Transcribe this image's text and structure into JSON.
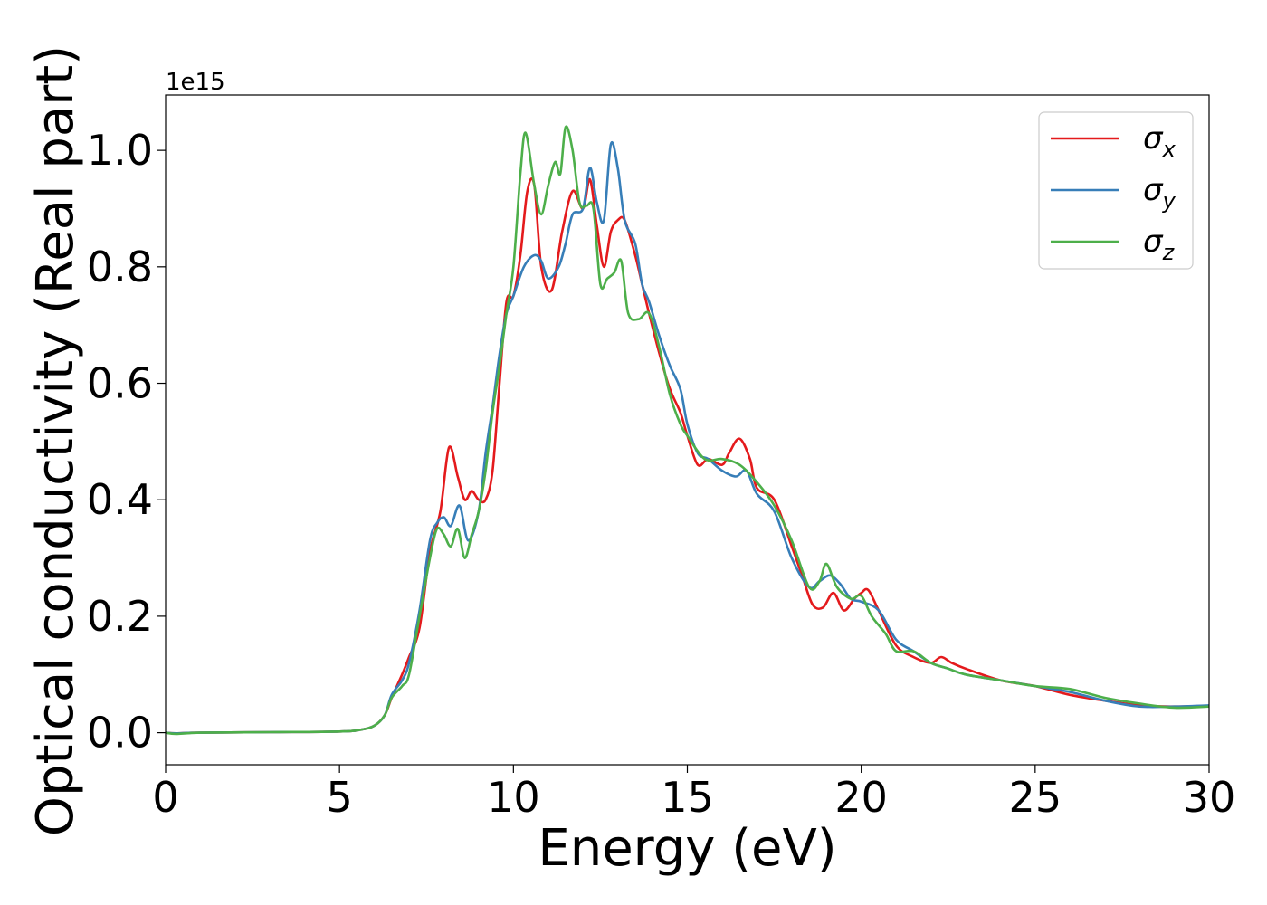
{
  "chart_data": {
    "type": "line",
    "xlabel": "Energy (eV)",
    "ylabel": "Optical conductivity (Real part)",
    "y_offset_label": "1e15",
    "xlim": [
      0,
      30
    ],
    "ylim": [
      -0.055,
      1.095
    ],
    "x_ticks": [
      0,
      5,
      10,
      15,
      20,
      25,
      30
    ],
    "x_tick_labels": [
      "0",
      "5",
      "10",
      "15",
      "20",
      "25",
      "30"
    ],
    "y_ticks": [
      0.0,
      0.2,
      0.4,
      0.6,
      0.8,
      1.0
    ],
    "y_tick_labels": [
      "0.0",
      "0.2",
      "0.4",
      "0.6",
      "0.8",
      "1.0"
    ],
    "grid": false,
    "legend_position": "top-right",
    "series": [
      {
        "name": "σx",
        "symbol": "σ",
        "subscript": "x",
        "color": "#e41a1c",
        "x": [
          0,
          0.3,
          1,
          3,
          5,
          5.6,
          6.0,
          6.3,
          6.5,
          6.8,
          7.0,
          7.3,
          7.6,
          7.9,
          8.15,
          8.4,
          8.6,
          8.8,
          9.0,
          9.2,
          9.4,
          9.6,
          9.8,
          10.0,
          10.2,
          10.4,
          10.6,
          10.8,
          11.1,
          11.4,
          11.7,
          12.0,
          12.2,
          12.4,
          12.6,
          12.8,
          13.0,
          13.2,
          13.5,
          13.7,
          13.9,
          14.2,
          14.5,
          14.8,
          15.0,
          15.3,
          15.6,
          16.0,
          16.2,
          16.5,
          16.8,
          17.0,
          17.5,
          18.0,
          18.3,
          18.6,
          18.9,
          19.2,
          19.5,
          19.8,
          20.0,
          20.2,
          20.5,
          21.0,
          21.5,
          22.0,
          22.3,
          22.6,
          23.0,
          24.0,
          25.0,
          26.0,
          27.0,
          28.0,
          29.0,
          30.0
        ],
        "values": [
          0,
          -0.001,
          0,
          0.001,
          0.002,
          0.005,
          0.012,
          0.03,
          0.06,
          0.1,
          0.13,
          0.18,
          0.31,
          0.38,
          0.49,
          0.44,
          0.4,
          0.415,
          0.4,
          0.4,
          0.45,
          0.6,
          0.74,
          0.75,
          0.82,
          0.93,
          0.94,
          0.8,
          0.76,
          0.86,
          0.93,
          0.9,
          0.95,
          0.87,
          0.8,
          0.86,
          0.88,
          0.88,
          0.82,
          0.77,
          0.72,
          0.65,
          0.59,
          0.55,
          0.51,
          0.46,
          0.47,
          0.46,
          0.48,
          0.505,
          0.47,
          0.42,
          0.4,
          0.32,
          0.27,
          0.22,
          0.215,
          0.24,
          0.21,
          0.23,
          0.24,
          0.245,
          0.21,
          0.15,
          0.13,
          0.12,
          0.13,
          0.12,
          0.11,
          0.09,
          0.08,
          0.065,
          0.055,
          0.047,
          0.045,
          0.046
        ]
      },
      {
        "name": "σy",
        "symbol": "σ",
        "subscript": "y",
        "color": "#377eb8",
        "x": [
          0,
          0.3,
          1,
          3,
          5,
          5.6,
          6.0,
          6.3,
          6.5,
          6.8,
          7.0,
          7.3,
          7.6,
          7.8,
          8.0,
          8.2,
          8.45,
          8.7,
          9.0,
          9.2,
          9.4,
          9.6,
          9.8,
          10.0,
          10.3,
          10.6,
          10.8,
          11.0,
          11.3,
          11.5,
          11.7,
          12.0,
          12.2,
          12.4,
          12.6,
          12.8,
          13.0,
          13.2,
          13.5,
          13.7,
          13.9,
          14.2,
          14.5,
          14.8,
          15.0,
          15.3,
          15.6,
          16.0,
          16.4,
          16.7,
          17.0,
          17.5,
          18.0,
          18.5,
          18.8,
          19.1,
          19.4,
          19.7,
          20.0,
          20.5,
          21.0,
          21.5,
          22.0,
          22.5,
          23.0,
          24.0,
          25.0,
          26.0,
          27.0,
          28.0,
          29.0,
          30.0
        ],
        "values": [
          0,
          -0.001,
          0,
          0.001,
          0.002,
          0.005,
          0.012,
          0.03,
          0.065,
          0.09,
          0.12,
          0.21,
          0.33,
          0.36,
          0.37,
          0.355,
          0.39,
          0.33,
          0.38,
          0.48,
          0.56,
          0.65,
          0.72,
          0.75,
          0.8,
          0.82,
          0.81,
          0.78,
          0.8,
          0.84,
          0.89,
          0.9,
          0.97,
          0.91,
          0.88,
          1.01,
          0.97,
          0.88,
          0.84,
          0.77,
          0.74,
          0.68,
          0.63,
          0.59,
          0.53,
          0.48,
          0.47,
          0.45,
          0.44,
          0.45,
          0.41,
          0.38,
          0.3,
          0.25,
          0.26,
          0.27,
          0.255,
          0.23,
          0.225,
          0.21,
          0.16,
          0.14,
          0.12,
          0.11,
          0.1,
          0.09,
          0.08,
          0.07,
          0.055,
          0.045,
          0.045,
          0.047
        ]
      },
      {
        "name": "σz",
        "symbol": "σ",
        "subscript": "z",
        "color": "#4daf4a",
        "x": [
          0,
          0.3,
          1,
          3,
          5,
          5.6,
          6.0,
          6.3,
          6.5,
          6.8,
          7.0,
          7.3,
          7.6,
          7.8,
          8.0,
          8.2,
          8.4,
          8.6,
          8.8,
          9.0,
          9.2,
          9.4,
          9.6,
          9.8,
          10.0,
          10.2,
          10.35,
          10.6,
          10.8,
          11.0,
          11.2,
          11.35,
          11.5,
          11.7,
          11.9,
          12.1,
          12.3,
          12.5,
          12.7,
          12.9,
          13.1,
          13.3,
          13.6,
          13.9,
          14.2,
          14.5,
          14.8,
          15.0,
          15.5,
          16.0,
          16.5,
          17.0,
          17.5,
          18.0,
          18.5,
          18.8,
          19.0,
          19.3,
          19.7,
          20.0,
          20.3,
          20.7,
          21.0,
          21.5,
          22.0,
          22.5,
          23.0,
          24.0,
          25.0,
          26.0,
          27.0,
          28.0,
          29.0,
          30.0
        ],
        "values": [
          0,
          -0.002,
          0,
          0.001,
          0.002,
          0.005,
          0.012,
          0.03,
          0.06,
          0.08,
          0.1,
          0.2,
          0.3,
          0.35,
          0.34,
          0.32,
          0.35,
          0.3,
          0.34,
          0.38,
          0.45,
          0.55,
          0.63,
          0.72,
          0.8,
          0.96,
          1.03,
          0.94,
          0.89,
          0.94,
          0.98,
          0.96,
          1.04,
          1.0,
          0.91,
          0.905,
          0.9,
          0.77,
          0.78,
          0.79,
          0.81,
          0.72,
          0.71,
          0.72,
          0.66,
          0.58,
          0.53,
          0.51,
          0.47,
          0.47,
          0.46,
          0.43,
          0.39,
          0.33,
          0.25,
          0.26,
          0.29,
          0.25,
          0.23,
          0.235,
          0.2,
          0.17,
          0.14,
          0.14,
          0.12,
          0.11,
          0.1,
          0.09,
          0.08,
          0.075,
          0.06,
          0.05,
          0.043,
          0.045
        ]
      }
    ]
  }
}
